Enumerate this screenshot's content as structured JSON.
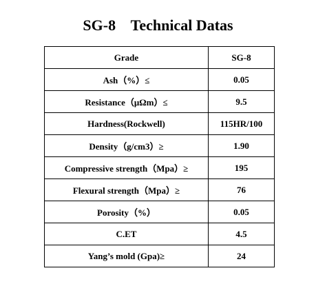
{
  "header": {
    "title": "SG-8    Technical Datas"
  },
  "table": {
    "rows": [
      [
        "Grade",
        "SG-8"
      ],
      [
        "Ash（%）≤",
        "0.05"
      ],
      [
        "Resistance（μΩm）≤",
        "9.5"
      ],
      [
        "Hardness(Rockwell)",
        "115HR/100"
      ],
      [
        "Density（g/cm3）≥",
        "1.90"
      ],
      [
        "Compressive strength（Mpa）≥",
        "195"
      ],
      [
        "Flexural strength（Mpa）≥",
        "76"
      ],
      [
        "Porosity（%）",
        "0.05"
      ],
      [
        "C.ET",
        "4.5"
      ],
      [
        "Yang’s mold (Gpa)≥",
        "24"
      ]
    ]
  }
}
